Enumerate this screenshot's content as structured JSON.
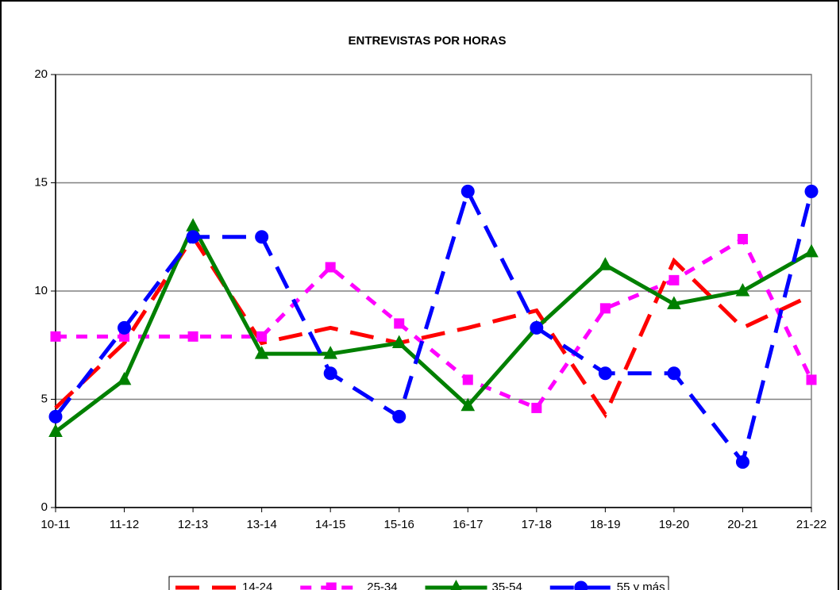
{
  "chart_data": {
    "type": "line",
    "title": "ENTREVISTAS POR HORAS",
    "categories": [
      "10-11",
      "11-12",
      "12-13",
      "13-14",
      "14-15",
      "15-16",
      "16-17",
      "17-18",
      "18-19",
      "19-20",
      "20-21",
      "21-22"
    ],
    "series": [
      {
        "name": "14-24",
        "color": "#ff0000",
        "dash": "30,16",
        "marker": "none",
        "values": [
          4.6,
          7.6,
          12.5,
          7.6,
          8.3,
          7.6,
          8.3,
          9.1,
          4.3,
          11.4,
          8.3,
          9.8
        ]
      },
      {
        "name": "25-34",
        "color": "#ff00ff",
        "dash": "14,12",
        "marker": "square",
        "values": [
          7.9,
          7.9,
          7.9,
          7.9,
          11.1,
          8.5,
          5.9,
          4.6,
          9.2,
          10.5,
          12.4,
          5.9
        ]
      },
      {
        "name": "35-54",
        "color": "#008000",
        "dash": "none",
        "marker": "triangle",
        "values": [
          3.5,
          5.9,
          13,
          7.1,
          7.1,
          7.6,
          4.7,
          8.3,
          11.2,
          9.4,
          10,
          11.8
        ]
      },
      {
        "name": "55 y más",
        "color": "#0000ff",
        "dash": "30,16",
        "marker": "circle",
        "values": [
          4.2,
          8.3,
          12.5,
          12.5,
          6.2,
          4.2,
          14.6,
          8.3,
          6.2,
          6.2,
          2.1,
          14.6
        ]
      }
    ],
    "ylim": [
      0,
      20
    ],
    "yticks": [
      0,
      5,
      10,
      15,
      20
    ],
    "grid": true,
    "legend": "bottom"
  }
}
